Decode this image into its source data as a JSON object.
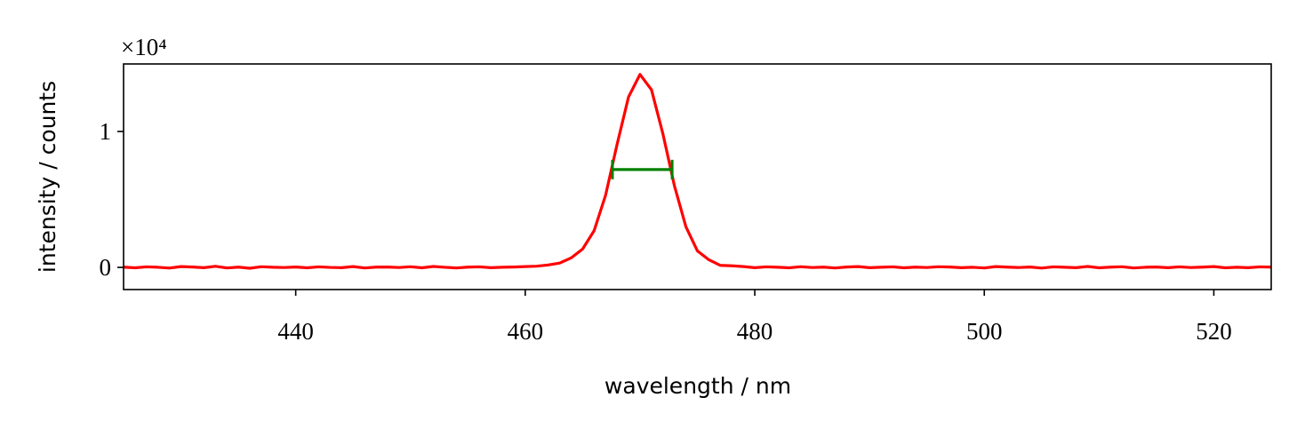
{
  "chart_data": {
    "type": "line",
    "x_label": "wavelength / nm",
    "y_label": "intensity / counts",
    "y_offset_label": "×10⁴",
    "color": "#ff0000",
    "x": [
      425,
      426,
      427,
      428,
      429,
      430,
      431,
      432,
      433,
      434,
      435,
      436,
      437,
      438,
      439,
      440,
      441,
      442,
      443,
      444,
      445,
      446,
      447,
      448,
      449,
      450,
      451,
      452,
      453,
      454,
      455,
      456,
      457,
      458,
      459,
      460,
      461,
      462,
      463,
      464,
      465,
      466,
      467,
      468,
      469,
      470,
      471,
      472,
      473,
      474,
      475,
      476,
      477,
      478,
      479,
      480,
      481,
      482,
      483,
      484,
      485,
      486,
      487,
      488,
      489,
      490,
      491,
      492,
      493,
      494,
      495,
      496,
      497,
      498,
      499,
      500,
      501,
      502,
      503,
      504,
      505,
      506,
      507,
      508,
      509,
      510,
      511,
      512,
      513,
      514,
      515,
      516,
      517,
      518,
      519,
      520,
      521,
      522,
      523,
      524,
      525
    ],
    "values": [
      20,
      -30,
      40,
      10,
      -50,
      60,
      30,
      -20,
      80,
      -40,
      20,
      -60,
      50,
      10,
      -10,
      30,
      -30,
      40,
      0,
      -20,
      60,
      -40,
      20,
      30,
      -10,
      50,
      -30,
      70,
      10,
      -40,
      20,
      40,
      -20,
      10,
      30,
      60,
      90,
      180,
      320,
      700,
      1350,
      2700,
      5310,
      9045,
      12540,
      14200,
      13070,
      9810,
      6000,
      2990,
      1215,
      560,
      150,
      120,
      60,
      -20,
      40,
      10,
      -30,
      50,
      -10,
      20,
      -40,
      30,
      60,
      -20,
      10,
      40,
      -30,
      20,
      -10,
      50,
      30,
      -20,
      10,
      -40,
      60,
      20,
      -10,
      30,
      -50,
      40,
      10,
      -20,
      70,
      -30,
      20,
      50,
      -40,
      10,
      30,
      -20,
      40,
      -10,
      20,
      60,
      -30,
      10,
      -20,
      40,
      20
    ],
    "fwhm": {
      "x": [
        467.6,
        472.8
      ],
      "y": 7200,
      "color": "#008000"
    },
    "xlim": [
      425,
      525
    ],
    "xticks": [
      440,
      460,
      480,
      500,
      520
    ],
    "ylim": [
      -1630,
      14970
    ],
    "yticks": [
      0,
      {
        "value": 10000,
        "label": "1"
      }
    ],
    "grid": false
  }
}
